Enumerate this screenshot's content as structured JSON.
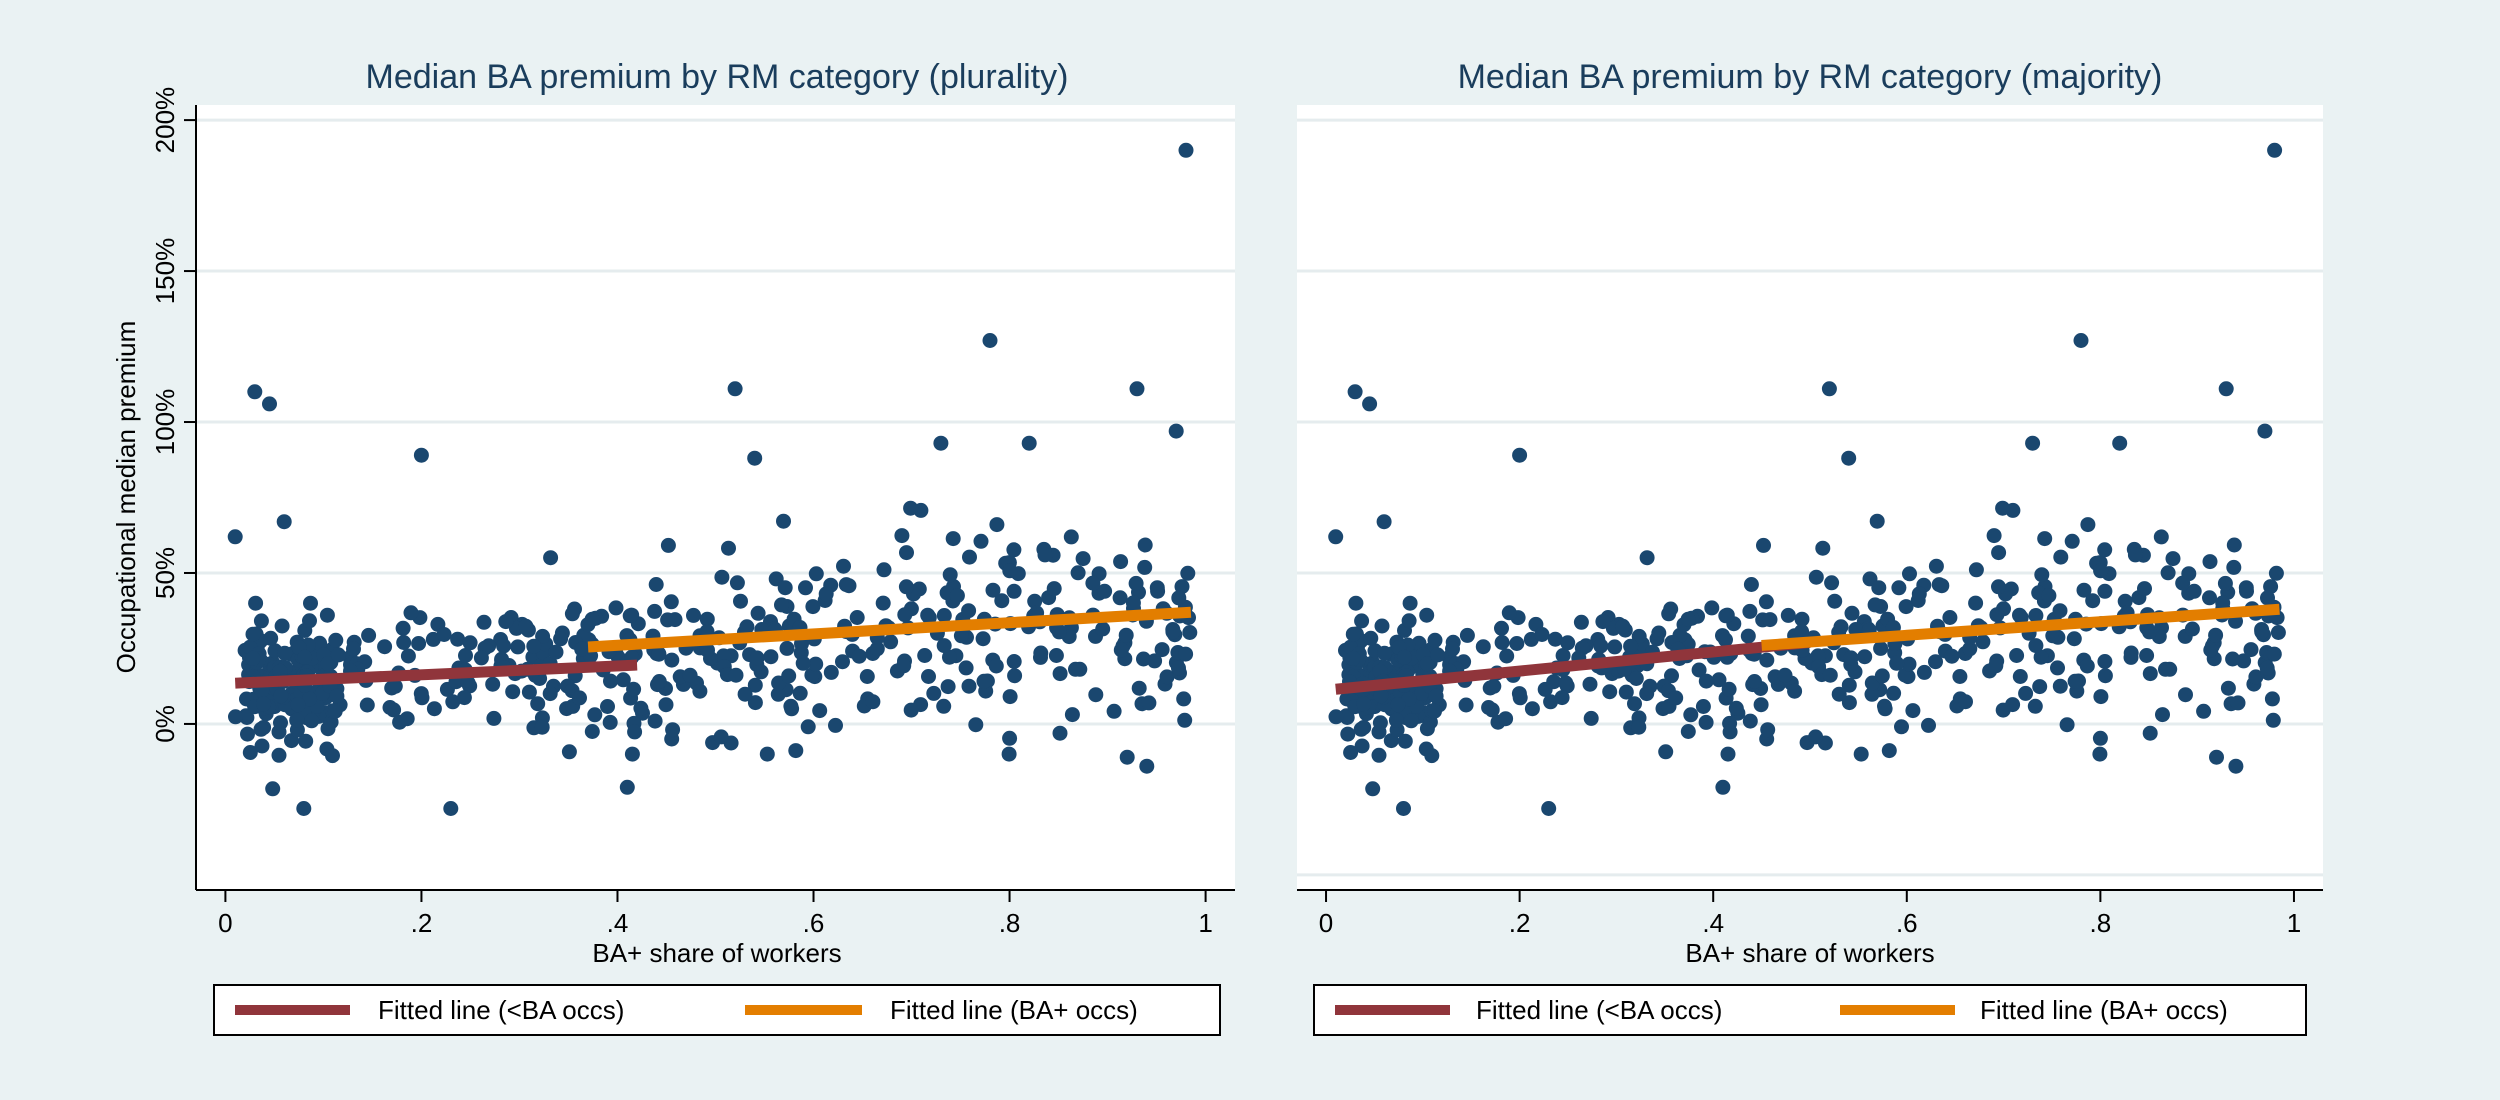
{
  "figure": {
    "colors": {
      "background": "#eaf2f3",
      "plot_bg": "#ffffff",
      "points": "#1a476f",
      "fit_below": "#90353b",
      "fit_above": "#e37e00",
      "grid": "#e5ecee",
      "text": "#1a3d5c"
    }
  },
  "chart_data": [
    {
      "type": "scatter",
      "title": "Median BA premium by RM category (plurality)",
      "xlabel": "BA+ share of workers",
      "ylabel": "Occupational median premium",
      "xlim": [
        -0.03,
        1.03
      ],
      "ylim": [
        -0.55,
        2.05
      ],
      "x_ticks": [
        0,
        0.2,
        0.4,
        0.6,
        0.8,
        1
      ],
      "x_tick_labels": [
        "0",
        ".2",
        ".4",
        ".6",
        ".8",
        "1"
      ],
      "y_ticks": [
        0,
        0.5,
        1,
        1.5,
        2
      ],
      "y_tick_labels": [
        "0%",
        "50%",
        "100%",
        "150%",
        "200%"
      ],
      "grid": true,
      "legend_position": "bottom",
      "series": [
        {
          "name": "Fitted line (<BA occs)",
          "kind": "line",
          "color": "#90353b",
          "x": [
            0.01,
            0.42
          ],
          "y": [
            0.135,
            0.195
          ]
        },
        {
          "name": "Fitted line (BA+ occs)",
          "kind": "line",
          "color": "#e37e00",
          "x": [
            0.37,
            0.985
          ],
          "y": [
            0.255,
            0.37
          ]
        }
      ],
      "outliers": [
        {
          "x": 0.98,
          "y": 1.9
        },
        {
          "x": 0.78,
          "y": 1.27
        },
        {
          "x": 0.03,
          "y": 1.1
        },
        {
          "x": 0.045,
          "y": 1.06
        },
        {
          "x": 0.52,
          "y": 1.11
        },
        {
          "x": 0.93,
          "y": 1.11
        },
        {
          "x": 0.2,
          "y": 0.89
        },
        {
          "x": 0.54,
          "y": 0.88
        },
        {
          "x": 0.97,
          "y": 0.97
        },
        {
          "x": 0.73,
          "y": 0.93
        },
        {
          "x": 0.82,
          "y": 0.93
        },
        {
          "x": 0.08,
          "y": -0.28
        },
        {
          "x": 0.23,
          "y": -0.28
        },
        {
          "x": 0.41,
          "y": -0.21
        },
        {
          "x": 0.92,
          "y": -0.11
        },
        {
          "x": 0.94,
          "y": -0.14
        },
        {
          "x": 0.01,
          "y": 0.62
        },
        {
          "x": 0.06,
          "y": 0.67
        }
      ]
    },
    {
      "type": "scatter",
      "title": "Median BA premium by RM category (majority)",
      "xlabel": "BA+ share of workers",
      "xlim": [
        -0.03,
        1.03
      ],
      "ylim": [
        -0.55,
        2.05
      ],
      "x_ticks": [
        0,
        0.2,
        0.4,
        0.6,
        0.8,
        1
      ],
      "x_tick_labels": [
        "0",
        ".2",
        ".4",
        ".6",
        ".8",
        "1"
      ],
      "y_ticks": [
        0,
        0.5,
        1,
        1.5,
        2
      ],
      "grid": true,
      "legend_position": "bottom",
      "series": [
        {
          "name": "Fitted line (<BA occs)",
          "kind": "line",
          "color": "#90353b",
          "x": [
            0.01,
            0.5
          ],
          "y": [
            0.115,
            0.27
          ]
        },
        {
          "name": "Fitted line (BA+ occs)",
          "kind": "line",
          "color": "#e37e00",
          "x": [
            0.45,
            0.985
          ],
          "y": [
            0.26,
            0.38
          ]
        }
      ],
      "outliers": [
        {
          "x": 0.98,
          "y": 1.9
        },
        {
          "x": 0.78,
          "y": 1.27
        },
        {
          "x": 0.03,
          "y": 1.1
        },
        {
          "x": 0.045,
          "y": 1.06
        },
        {
          "x": 0.52,
          "y": 1.11
        },
        {
          "x": 0.93,
          "y": 1.11
        },
        {
          "x": 0.2,
          "y": 0.89
        },
        {
          "x": 0.54,
          "y": 0.88
        },
        {
          "x": 0.97,
          "y": 0.97
        },
        {
          "x": 0.73,
          "y": 0.93
        },
        {
          "x": 0.82,
          "y": 0.93
        },
        {
          "x": 0.08,
          "y": -0.28
        },
        {
          "x": 0.23,
          "y": -0.28
        },
        {
          "x": 0.41,
          "y": -0.21
        },
        {
          "x": 0.92,
          "y": -0.11
        },
        {
          "x": 0.94,
          "y": -0.14
        },
        {
          "x": 0.01,
          "y": 0.62
        },
        {
          "x": 0.06,
          "y": 0.67
        }
      ]
    }
  ]
}
